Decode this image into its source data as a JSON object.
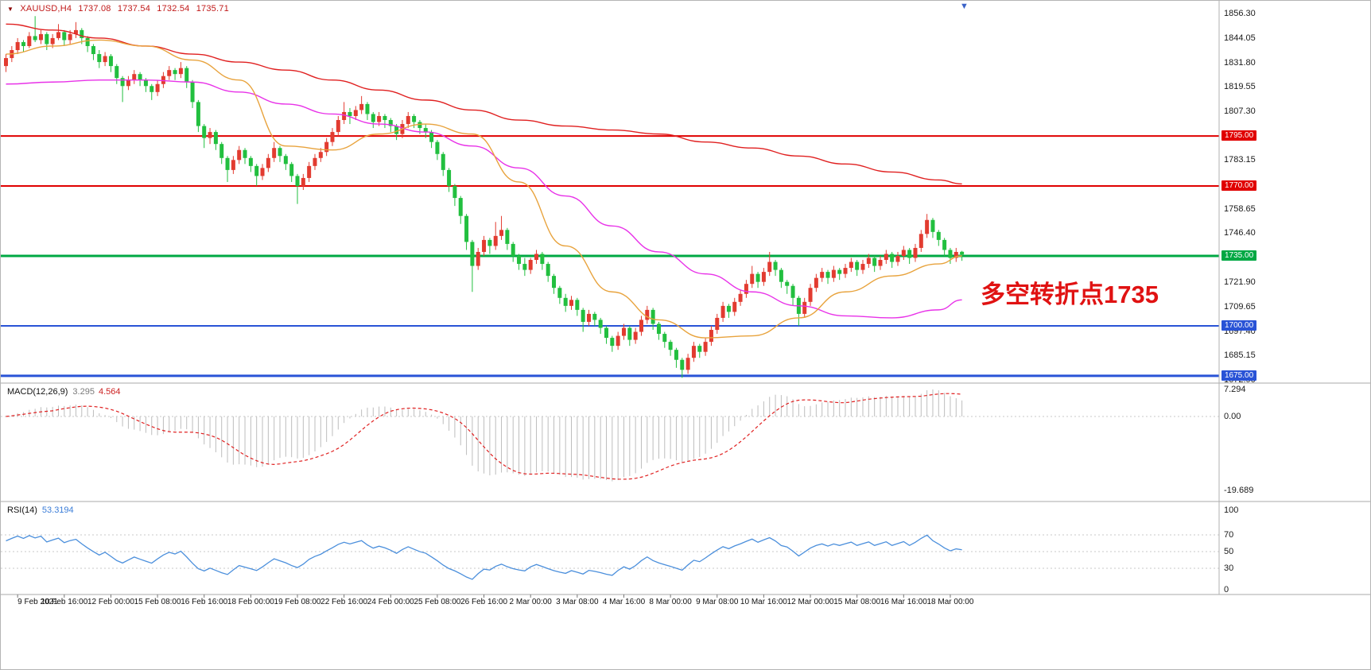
{
  "header": {
    "marker": "▼",
    "symbol_period": "XAUUSD,H4",
    "open": "1737.08",
    "high": "1737.54",
    "low": "1732.54",
    "close": "1735.71"
  },
  "annotation": {
    "text": "多空转折点1735",
    "color": "#e01212"
  },
  "shift_marker": "▼",
  "price_axis": {
    "grid_labels": [
      "1856.30",
      "1844.05",
      "1831.80",
      "1819.55",
      "1807.30",
      "1783.15",
      "1758.65",
      "1746.40",
      "1721.90",
      "1709.65",
      "1697.40",
      "1685.15",
      "1672.90"
    ],
    "min": 1671.8,
    "max": 1862.7
  },
  "chart_data": {
    "type": "candlestick",
    "symbol": "XAUUSD",
    "timeframe": "H4",
    "title": "XAUUSD,H4 gold chart with MACD and RSI",
    "colors": {
      "up": "#e23b30",
      "down": "#22bf3f"
    },
    "levels": [
      {
        "price": 1795.0,
        "label": "1795.00",
        "color": "#e00000",
        "width": 2
      },
      {
        "price": 1770.0,
        "label": "1770.00",
        "color": "#e00000",
        "width": 2
      },
      {
        "price": 1735.0,
        "label": "1735.00",
        "color": "#00a843",
        "width": 3
      },
      {
        "price": 1700.0,
        "label": "1700.00",
        "color": "#2953d6",
        "width": 2
      },
      {
        "price": 1675.0,
        "label": "1675.00",
        "color": "#2953d6",
        "width": 3
      }
    ],
    "candles": [
      [
        1830,
        1836,
        1827,
        1834
      ],
      [
        1834,
        1840,
        1832,
        1838
      ],
      [
        1838,
        1844,
        1836,
        1842
      ],
      [
        1842,
        1843,
        1837,
        1840
      ],
      [
        1840,
        1847,
        1839,
        1845
      ],
      [
        1845,
        1855,
        1842,
        1843
      ],
      [
        1843,
        1848,
        1841,
        1846
      ],
      [
        1846,
        1847,
        1838,
        1841
      ],
      [
        1841,
        1846,
        1839,
        1844
      ],
      [
        1844,
        1851,
        1843,
        1847
      ],
      [
        1847,
        1848,
        1840,
        1843
      ],
      [
        1843,
        1848,
        1841,
        1846
      ],
      [
        1846,
        1852,
        1844,
        1848
      ],
      [
        1848,
        1849,
        1841,
        1844
      ],
      [
        1844,
        1845,
        1837,
        1840
      ],
      [
        1840,
        1841,
        1833,
        1836
      ],
      [
        1836,
        1838,
        1829,
        1832
      ],
      [
        1832,
        1837,
        1830,
        1835
      ],
      [
        1835,
        1836,
        1827,
        1830
      ],
      [
        1830,
        1831,
        1821,
        1824
      ],
      [
        1824,
        1825,
        1812,
        1820
      ],
      [
        1820,
        1825,
        1818,
        1823
      ],
      [
        1823,
        1828,
        1821,
        1826
      ],
      [
        1826,
        1827,
        1820,
        1823
      ],
      [
        1823,
        1824,
        1817,
        1820
      ],
      [
        1820,
        1821,
        1813,
        1817
      ],
      [
        1817,
        1823,
        1815,
        1821
      ],
      [
        1821,
        1827,
        1819,
        1825
      ],
      [
        1825,
        1830,
        1823,
        1828
      ],
      [
        1828,
        1829,
        1823,
        1826
      ],
      [
        1826,
        1832,
        1824,
        1829
      ],
      [
        1829,
        1830,
        1819,
        1822
      ],
      [
        1822,
        1823,
        1809,
        1812
      ],
      [
        1812,
        1813,
        1797,
        1800
      ],
      [
        1800,
        1801,
        1789,
        1794
      ],
      [
        1794,
        1799,
        1791,
        1797
      ],
      [
        1797,
        1798,
        1788,
        1791
      ],
      [
        1791,
        1792,
        1781,
        1784
      ],
      [
        1784,
        1785,
        1772,
        1778
      ],
      [
        1778,
        1785,
        1776,
        1783
      ],
      [
        1783,
        1790,
        1781,
        1788
      ],
      [
        1788,
        1789,
        1781,
        1784
      ],
      [
        1784,
        1785,
        1777,
        1780
      ],
      [
        1780,
        1781,
        1770,
        1775
      ],
      [
        1775,
        1781,
        1773,
        1779
      ],
      [
        1779,
        1786,
        1777,
        1784
      ],
      [
        1784,
        1792,
        1782,
        1789
      ],
      [
        1789,
        1790,
        1782,
        1785
      ],
      [
        1785,
        1786,
        1778,
        1781
      ],
      [
        1781,
        1782,
        1772,
        1775
      ],
      [
        1775,
        1776,
        1761,
        1770
      ],
      [
        1770,
        1776,
        1768,
        1774
      ],
      [
        1774,
        1782,
        1772,
        1780
      ],
      [
        1780,
        1786,
        1778,
        1784
      ],
      [
        1784,
        1789,
        1782,
        1787
      ],
      [
        1787,
        1794,
        1785,
        1792
      ],
      [
        1792,
        1799,
        1790,
        1797
      ],
      [
        1797,
        1805,
        1795,
        1803
      ],
      [
        1803,
        1812,
        1801,
        1807
      ],
      [
        1807,
        1809,
        1801,
        1805
      ],
      [
        1805,
        1810,
        1803,
        1808
      ],
      [
        1808,
        1815,
        1806,
        1811
      ],
      [
        1811,
        1812,
        1803,
        1806
      ],
      [
        1806,
        1807,
        1799,
        1802
      ],
      [
        1802,
        1807,
        1800,
        1805
      ],
      [
        1805,
        1806,
        1799,
        1803
      ],
      [
        1803,
        1804,
        1797,
        1800
      ],
      [
        1800,
        1801,
        1793,
        1796
      ],
      [
        1796,
        1803,
        1794,
        1801
      ],
      [
        1801,
        1807,
        1799,
        1805
      ],
      [
        1805,
        1806,
        1799,
        1802
      ],
      [
        1802,
        1803,
        1796,
        1799
      ],
      [
        1799,
        1801,
        1794,
        1797
      ],
      [
        1797,
        1798,
        1789,
        1792
      ],
      [
        1792,
        1793,
        1783,
        1786
      ],
      [
        1786,
        1787,
        1775,
        1778
      ],
      [
        1778,
        1779,
        1767,
        1770
      ],
      [
        1770,
        1771,
        1760,
        1764
      ],
      [
        1764,
        1765,
        1751,
        1755
      ],
      [
        1755,
        1756,
        1738,
        1742
      ],
      [
        1742,
        1743,
        1717,
        1730
      ],
      [
        1730,
        1739,
        1728,
        1737
      ],
      [
        1737,
        1745,
        1735,
        1743
      ],
      [
        1743,
        1744,
        1736,
        1740
      ],
      [
        1740,
        1752,
        1738,
        1745
      ],
      [
        1745,
        1755,
        1743,
        1748
      ],
      [
        1748,
        1749,
        1738,
        1741
      ],
      [
        1741,
        1742,
        1732,
        1735
      ],
      [
        1735,
        1736,
        1728,
        1731
      ],
      [
        1731,
        1734,
        1725,
        1728
      ],
      [
        1728,
        1734,
        1726,
        1733
      ],
      [
        1733,
        1738,
        1731,
        1736
      ],
      [
        1736,
        1737,
        1728,
        1731
      ],
      [
        1731,
        1732,
        1722,
        1725
      ],
      [
        1725,
        1726,
        1716,
        1719
      ],
      [
        1719,
        1720,
        1711,
        1714
      ],
      [
        1714,
        1716,
        1707,
        1710
      ],
      [
        1710,
        1715,
        1708,
        1713
      ],
      [
        1713,
        1714,
        1705,
        1708
      ],
      [
        1708,
        1709,
        1697,
        1702
      ],
      [
        1702,
        1708,
        1700,
        1706
      ],
      [
        1706,
        1707,
        1700,
        1703
      ],
      [
        1703,
        1704,
        1696,
        1699
      ],
      [
        1699,
        1700,
        1691,
        1694
      ],
      [
        1694,
        1695,
        1687,
        1690
      ],
      [
        1690,
        1697,
        1688,
        1695
      ],
      [
        1695,
        1701,
        1693,
        1699
      ],
      [
        1699,
        1700,
        1690,
        1693
      ],
      [
        1693,
        1699,
        1691,
        1697
      ],
      [
        1697,
        1705,
        1695,
        1703
      ],
      [
        1703,
        1710,
        1701,
        1708
      ],
      [
        1708,
        1709,
        1698,
        1701
      ],
      [
        1701,
        1702,
        1693,
        1696
      ],
      [
        1696,
        1697,
        1689,
        1692
      ],
      [
        1692,
        1693,
        1685,
        1688
      ],
      [
        1688,
        1689,
        1679,
        1683
      ],
      [
        1683,
        1684,
        1674,
        1678
      ],
      [
        1678,
        1686,
        1676,
        1684
      ],
      [
        1684,
        1692,
        1682,
        1690
      ],
      [
        1690,
        1691,
        1684,
        1687
      ],
      [
        1687,
        1694,
        1685,
        1692
      ],
      [
        1692,
        1700,
        1690,
        1698
      ],
      [
        1698,
        1706,
        1696,
        1704
      ],
      [
        1704,
        1712,
        1702,
        1710
      ],
      [
        1710,
        1711,
        1704,
        1707
      ],
      [
        1707,
        1714,
        1705,
        1712
      ],
      [
        1712,
        1718,
        1710,
        1716
      ],
      [
        1716,
        1723,
        1714,
        1721
      ],
      [
        1721,
        1730,
        1719,
        1726
      ],
      [
        1726,
        1727,
        1719,
        1722
      ],
      [
        1722,
        1729,
        1720,
        1727
      ],
      [
        1727,
        1737,
        1725,
        1732
      ],
      [
        1732,
        1733,
        1725,
        1728
      ],
      [
        1728,
        1729,
        1719,
        1722
      ],
      [
        1722,
        1723,
        1716,
        1720
      ],
      [
        1720,
        1721,
        1710,
        1714
      ],
      [
        1714,
        1715,
        1700,
        1706
      ],
      [
        1706,
        1714,
        1704,
        1712
      ],
      [
        1712,
        1721,
        1710,
        1719
      ],
      [
        1719,
        1726,
        1717,
        1724
      ],
      [
        1724,
        1729,
        1722,
        1727
      ],
      [
        1727,
        1728,
        1721,
        1724
      ],
      [
        1724,
        1730,
        1722,
        1728
      ],
      [
        1728,
        1729,
        1723,
        1726
      ],
      [
        1726,
        1731,
        1724,
        1729
      ],
      [
        1729,
        1734,
        1727,
        1732
      ],
      [
        1732,
        1733,
        1725,
        1728
      ],
      [
        1728,
        1733,
        1726,
        1731
      ],
      [
        1731,
        1736,
        1729,
        1734
      ],
      [
        1734,
        1735,
        1727,
        1730
      ],
      [
        1730,
        1735,
        1728,
        1733
      ],
      [
        1733,
        1738,
        1731,
        1736
      ],
      [
        1736,
        1737,
        1729,
        1732
      ],
      [
        1732,
        1737,
        1730,
        1735
      ],
      [
        1735,
        1740,
        1733,
        1738
      ],
      [
        1738,
        1739,
        1731,
        1734
      ],
      [
        1734,
        1741,
        1732,
        1739
      ],
      [
        1739,
        1748,
        1737,
        1746
      ],
      [
        1746,
        1756,
        1744,
        1753
      ],
      [
        1753,
        1754,
        1744,
        1747
      ],
      [
        1747,
        1748,
        1740,
        1743
      ],
      [
        1743,
        1744,
        1735,
        1738
      ],
      [
        1738,
        1739,
        1731,
        1734
      ],
      [
        1734,
        1739,
        1732,
        1737
      ],
      [
        1737.08,
        1737.54,
        1732.54,
        1735.71
      ]
    ],
    "time_labels": [
      {
        "i": 2,
        "t": "9 Feb 2021"
      },
      {
        "i": 10,
        "t": "10 Feb 16:00"
      },
      {
        "i": 18,
        "t": "12 Feb 00:00"
      },
      {
        "i": 26,
        "t": "15 Feb 08:00"
      },
      {
        "i": 34,
        "t": "16 Feb 16:00"
      },
      {
        "i": 42,
        "t": "18 Feb 00:00"
      },
      {
        "i": 50,
        "t": "19 Feb 08:00"
      },
      {
        "i": 58,
        "t": "22 Feb 16:00"
      },
      {
        "i": 66,
        "t": "24 Feb 00:00"
      },
      {
        "i": 74,
        "t": "25 Feb 08:00"
      },
      {
        "i": 82,
        "t": "26 Feb 16:00"
      },
      {
        "i": 90,
        "t": "2 Mar 00:00"
      },
      {
        "i": 98,
        "t": "3 Mar 08:00"
      },
      {
        "i": 106,
        "t": "4 Mar 16:00"
      },
      {
        "i": 114,
        "t": "8 Mar 00:00"
      },
      {
        "i": 122,
        "t": "9 Mar 08:00"
      },
      {
        "i": 130,
        "t": "10 Mar 16:00"
      },
      {
        "i": 138,
        "t": "12 Mar 00:00"
      },
      {
        "i": 146,
        "t": "15 Mar 08:00"
      },
      {
        "i": 154,
        "t": "16 Mar 16:00"
      },
      {
        "i": 162,
        "t": "18 Mar 00:00"
      }
    ],
    "moving_averages": {
      "sample_indices": [
        0,
        8,
        16,
        24,
        32,
        40,
        48,
        56,
        64,
        72,
        80,
        88,
        96,
        104,
        112,
        120,
        128,
        136,
        144,
        152,
        160,
        164
      ],
      "series": [
        {
          "name": "ma-long-red-line",
          "color": "#e02020",
          "values": [
            1851,
            1848,
            1844,
            1840,
            1836,
            1832,
            1828,
            1823,
            1818,
            1813,
            1808,
            1803,
            1800,
            1798,
            1796,
            1792,
            1789,
            1785,
            1781,
            1777,
            1773,
            1771
          ]
        },
        {
          "name": "ma-mid-magenta-line",
          "color": "#e832e8",
          "values": [
            1821,
            1822,
            1823,
            1823,
            1822,
            1817,
            1811,
            1806,
            1801,
            1797,
            1790,
            1779,
            1765,
            1750,
            1737,
            1726,
            1717,
            1710,
            1705,
            1704,
            1708,
            1713
          ]
        },
        {
          "name": "ma-short-orange-line",
          "color": "#e8a33d",
          "values": [
            1836,
            1840,
            1843,
            1840,
            1833,
            1823,
            1790,
            1788,
            1796,
            1801,
            1796,
            1772,
            1740,
            1717,
            1703,
            1694,
            1695,
            1704,
            1717,
            1725,
            1731,
            1735
          ]
        }
      ]
    },
    "macd": {
      "label": "MACD(12,26,9)",
      "value_main": "3.295",
      "value_signal": "4.564",
      "fast": 12,
      "slow": 26,
      "signal": 9,
      "axis_values": [
        7.294,
        0,
        -19.689
      ],
      "axis_label_texts": [
        "7.294",
        "0.00",
        "-19.689"
      ],
      "hist_color": "#bdbdbd",
      "signal_color": "#e02020"
    },
    "rsi": {
      "label": "RSI(14)",
      "value": "53.3194",
      "period": 14,
      "levels": [
        70,
        50,
        30
      ],
      "axis_values": [
        100,
        70,
        50,
        30,
        0
      ],
      "color": "#4b8fdc"
    }
  }
}
